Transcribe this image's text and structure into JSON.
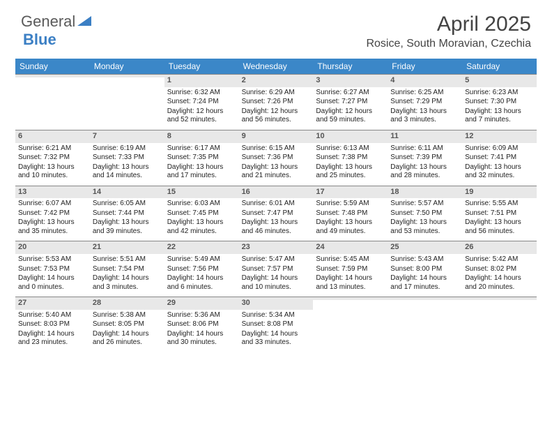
{
  "brand": {
    "text1": "General",
    "text2": "Blue"
  },
  "title": "April 2025",
  "location": "Rosice, South Moravian, Czechia",
  "colors": {
    "header_bg": "#3b87c8",
    "header_text": "#ffffff",
    "daynum_bg": "#e8e8e8",
    "border": "#888888",
    "brand_gray": "#5a5a5a",
    "brand_blue": "#3b7fc4"
  },
  "day_labels": [
    "Sunday",
    "Monday",
    "Tuesday",
    "Wednesday",
    "Thursday",
    "Friday",
    "Saturday"
  ],
  "weeks": [
    [
      {
        "day": "",
        "sunrise": "",
        "sunset": "",
        "daylight": ""
      },
      {
        "day": "",
        "sunrise": "",
        "sunset": "",
        "daylight": ""
      },
      {
        "day": "1",
        "sunrise": "Sunrise: 6:32 AM",
        "sunset": "Sunset: 7:24 PM",
        "daylight": "Daylight: 12 hours and 52 minutes."
      },
      {
        "day": "2",
        "sunrise": "Sunrise: 6:29 AM",
        "sunset": "Sunset: 7:26 PM",
        "daylight": "Daylight: 12 hours and 56 minutes."
      },
      {
        "day": "3",
        "sunrise": "Sunrise: 6:27 AM",
        "sunset": "Sunset: 7:27 PM",
        "daylight": "Daylight: 12 hours and 59 minutes."
      },
      {
        "day": "4",
        "sunrise": "Sunrise: 6:25 AM",
        "sunset": "Sunset: 7:29 PM",
        "daylight": "Daylight: 13 hours and 3 minutes."
      },
      {
        "day": "5",
        "sunrise": "Sunrise: 6:23 AM",
        "sunset": "Sunset: 7:30 PM",
        "daylight": "Daylight: 13 hours and 7 minutes."
      }
    ],
    [
      {
        "day": "6",
        "sunrise": "Sunrise: 6:21 AM",
        "sunset": "Sunset: 7:32 PM",
        "daylight": "Daylight: 13 hours and 10 minutes."
      },
      {
        "day": "7",
        "sunrise": "Sunrise: 6:19 AM",
        "sunset": "Sunset: 7:33 PM",
        "daylight": "Daylight: 13 hours and 14 minutes."
      },
      {
        "day": "8",
        "sunrise": "Sunrise: 6:17 AM",
        "sunset": "Sunset: 7:35 PM",
        "daylight": "Daylight: 13 hours and 17 minutes."
      },
      {
        "day": "9",
        "sunrise": "Sunrise: 6:15 AM",
        "sunset": "Sunset: 7:36 PM",
        "daylight": "Daylight: 13 hours and 21 minutes."
      },
      {
        "day": "10",
        "sunrise": "Sunrise: 6:13 AM",
        "sunset": "Sunset: 7:38 PM",
        "daylight": "Daylight: 13 hours and 25 minutes."
      },
      {
        "day": "11",
        "sunrise": "Sunrise: 6:11 AM",
        "sunset": "Sunset: 7:39 PM",
        "daylight": "Daylight: 13 hours and 28 minutes."
      },
      {
        "day": "12",
        "sunrise": "Sunrise: 6:09 AM",
        "sunset": "Sunset: 7:41 PM",
        "daylight": "Daylight: 13 hours and 32 minutes."
      }
    ],
    [
      {
        "day": "13",
        "sunrise": "Sunrise: 6:07 AM",
        "sunset": "Sunset: 7:42 PM",
        "daylight": "Daylight: 13 hours and 35 minutes."
      },
      {
        "day": "14",
        "sunrise": "Sunrise: 6:05 AM",
        "sunset": "Sunset: 7:44 PM",
        "daylight": "Daylight: 13 hours and 39 minutes."
      },
      {
        "day": "15",
        "sunrise": "Sunrise: 6:03 AM",
        "sunset": "Sunset: 7:45 PM",
        "daylight": "Daylight: 13 hours and 42 minutes."
      },
      {
        "day": "16",
        "sunrise": "Sunrise: 6:01 AM",
        "sunset": "Sunset: 7:47 PM",
        "daylight": "Daylight: 13 hours and 46 minutes."
      },
      {
        "day": "17",
        "sunrise": "Sunrise: 5:59 AM",
        "sunset": "Sunset: 7:48 PM",
        "daylight": "Daylight: 13 hours and 49 minutes."
      },
      {
        "day": "18",
        "sunrise": "Sunrise: 5:57 AM",
        "sunset": "Sunset: 7:50 PM",
        "daylight": "Daylight: 13 hours and 53 minutes."
      },
      {
        "day": "19",
        "sunrise": "Sunrise: 5:55 AM",
        "sunset": "Sunset: 7:51 PM",
        "daylight": "Daylight: 13 hours and 56 minutes."
      }
    ],
    [
      {
        "day": "20",
        "sunrise": "Sunrise: 5:53 AM",
        "sunset": "Sunset: 7:53 PM",
        "daylight": "Daylight: 14 hours and 0 minutes."
      },
      {
        "day": "21",
        "sunrise": "Sunrise: 5:51 AM",
        "sunset": "Sunset: 7:54 PM",
        "daylight": "Daylight: 14 hours and 3 minutes."
      },
      {
        "day": "22",
        "sunrise": "Sunrise: 5:49 AM",
        "sunset": "Sunset: 7:56 PM",
        "daylight": "Daylight: 14 hours and 6 minutes."
      },
      {
        "day": "23",
        "sunrise": "Sunrise: 5:47 AM",
        "sunset": "Sunset: 7:57 PM",
        "daylight": "Daylight: 14 hours and 10 minutes."
      },
      {
        "day": "24",
        "sunrise": "Sunrise: 5:45 AM",
        "sunset": "Sunset: 7:59 PM",
        "daylight": "Daylight: 14 hours and 13 minutes."
      },
      {
        "day": "25",
        "sunrise": "Sunrise: 5:43 AM",
        "sunset": "Sunset: 8:00 PM",
        "daylight": "Daylight: 14 hours and 17 minutes."
      },
      {
        "day": "26",
        "sunrise": "Sunrise: 5:42 AM",
        "sunset": "Sunset: 8:02 PM",
        "daylight": "Daylight: 14 hours and 20 minutes."
      }
    ],
    [
      {
        "day": "27",
        "sunrise": "Sunrise: 5:40 AM",
        "sunset": "Sunset: 8:03 PM",
        "daylight": "Daylight: 14 hours and 23 minutes."
      },
      {
        "day": "28",
        "sunrise": "Sunrise: 5:38 AM",
        "sunset": "Sunset: 8:05 PM",
        "daylight": "Daylight: 14 hours and 26 minutes."
      },
      {
        "day": "29",
        "sunrise": "Sunrise: 5:36 AM",
        "sunset": "Sunset: 8:06 PM",
        "daylight": "Daylight: 14 hours and 30 minutes."
      },
      {
        "day": "30",
        "sunrise": "Sunrise: 5:34 AM",
        "sunset": "Sunset: 8:08 PM",
        "daylight": "Daylight: 14 hours and 33 minutes."
      },
      {
        "day": "",
        "sunrise": "",
        "sunset": "",
        "daylight": ""
      },
      {
        "day": "",
        "sunrise": "",
        "sunset": "",
        "daylight": ""
      },
      {
        "day": "",
        "sunrise": "",
        "sunset": "",
        "daylight": ""
      }
    ]
  ]
}
